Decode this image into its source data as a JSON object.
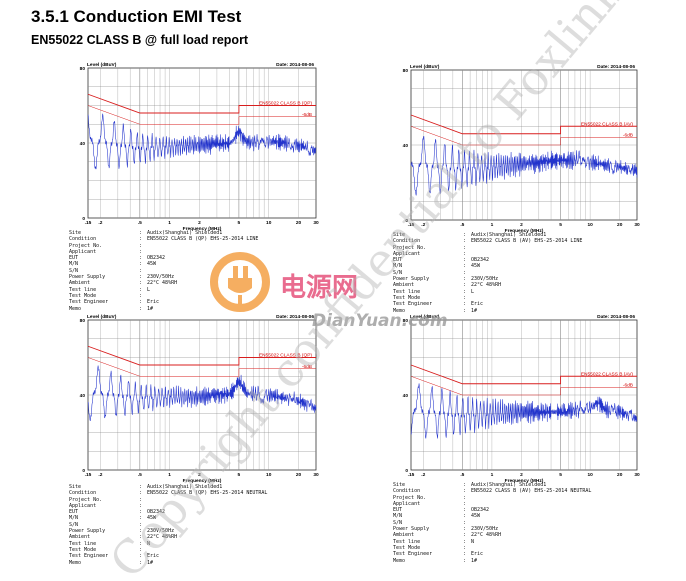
{
  "heading": "3.5.1 Conduction EMI Test",
  "subheading": "EN55022 CLASS B @ full load report",
  "watermark": {
    "brand_cn": "电源网",
    "brand_en": "DianYuan.com",
    "diagonal_text": "Copyright confidential to Foxlink",
    "colors": {
      "orange": "#f39a3a",
      "pink": "#e23b6a",
      "gray": "#a8a8a8"
    }
  },
  "colors": {
    "trace": "#2233cc",
    "limit": "#d81e1e",
    "grid": "#8a8a8a"
  },
  "chart_data": [
    {
      "type": "line",
      "ylabel": "Level (dBuV)",
      "xlabel": "Frequency (MHz)",
      "date": "Date: 2014-08-06",
      "y_ticks": [
        "80",
        "40",
        "0"
      ],
      "x_ticks": [
        ".15",
        ".2",
        ".5",
        "1",
        "2",
        "5",
        "10",
        "20",
        "30"
      ],
      "ylim": [
        0,
        80
      ],
      "xlim": [
        0.15,
        30
      ],
      "x_scale": "log",
      "limit_label": "EN55022 CLASS B (QP)",
      "margin_label": "-6dB",
      "noise_mean": [
        [
          0.15,
          42
        ],
        [
          0.5,
          37
        ],
        [
          1,
          38
        ],
        [
          2,
          39
        ],
        [
          5,
          40
        ],
        [
          10,
          41
        ],
        [
          20,
          39
        ],
        [
          30,
          36
        ]
      ],
      "noise_amp": [
        [
          0.15,
          16
        ],
        [
          0.3,
          12
        ],
        [
          0.5,
          8
        ],
        [
          1,
          5
        ],
        [
          5,
          4
        ],
        [
          30,
          3
        ]
      ],
      "peak_f": 5.0,
      "peak_v": 46,
      "info": [
        [
          "Site",
          "Audix(Shanghai) Shielded1"
        ],
        [
          "Condition",
          "EN55022 CLASS B (QP) EHS-25-2014 LINE"
        ],
        [
          "Project No.",
          ""
        ],
        [
          "Applicant",
          ""
        ],
        [
          "EUT",
          "OB2342"
        ],
        [
          "M/N",
          "45W"
        ],
        [
          "S/N",
          ""
        ],
        [
          "Power Supply",
          "230V/50Hz"
        ],
        [
          "Ambient",
          "22°C 48%RH"
        ],
        [
          "Test line",
          "L"
        ],
        [
          "Test Mode",
          ""
        ],
        [
          "Test Engineer",
          "Eric"
        ],
        [
          "Memo",
          "1#"
        ]
      ]
    },
    {
      "type": "line",
      "ylabel": "Level (dBuV)",
      "xlabel": "Frequency (MHz)",
      "date": "Date: 2014-08-06",
      "y_ticks": [
        "80",
        "40",
        "0"
      ],
      "x_ticks": [
        ".15",
        ".2",
        ".5",
        "1",
        "2",
        "5",
        "10",
        "20",
        "30"
      ],
      "ylim": [
        0,
        80
      ],
      "xlim": [
        0.15,
        30
      ],
      "x_scale": "log",
      "limit_label": "EN55022 CLASS B (AV)",
      "margin_label": "-6dB",
      "noise_mean": [
        [
          0.15,
          30
        ],
        [
          0.5,
          27
        ],
        [
          1,
          28
        ],
        [
          2,
          30
        ],
        [
          5,
          32
        ],
        [
          10,
          31
        ],
        [
          20,
          28
        ],
        [
          30,
          26
        ]
      ],
      "noise_amp": [
        [
          0.15,
          16
        ],
        [
          0.3,
          14
        ],
        [
          0.5,
          10
        ],
        [
          1,
          7
        ],
        [
          5,
          4
        ],
        [
          30,
          3
        ]
      ],
      "peak_f": 8.0,
      "peak_v": 33,
      "info": [
        [
          "Site",
          "Audix(Shanghai) Shielded1"
        ],
        [
          "Condition",
          "EN55022 CLASS B (AV) EHS-25-2014 LINE"
        ],
        [
          "Project No.",
          ""
        ],
        [
          "Applicant",
          ""
        ],
        [
          "EUT",
          "OB2342"
        ],
        [
          "M/N",
          "45W"
        ],
        [
          "S/N",
          ""
        ],
        [
          "Power Supply",
          "230V/50Hz"
        ],
        [
          "Ambient",
          "22°C 48%RH"
        ],
        [
          "Test line",
          "L"
        ],
        [
          "Test Mode",
          ""
        ],
        [
          "Test Engineer",
          "Eric"
        ],
        [
          "Memo",
          "1#"
        ]
      ]
    },
    {
      "type": "line",
      "ylabel": "Level (dBuV)",
      "xlabel": "Frequency (MHz)",
      "date": "Date: 2014-08-06",
      "y_ticks": [
        "80",
        "40",
        "0"
      ],
      "x_ticks": [
        ".15",
        ".2",
        ".5",
        "1",
        "2",
        "5",
        "10",
        "20",
        "30"
      ],
      "ylim": [
        0,
        80
      ],
      "xlim": [
        0.15,
        30
      ],
      "x_scale": "log",
      "limit_label": "EN55022 CLASS B (QP)",
      "margin_label": "-6dB",
      "noise_mean": [
        [
          0.15,
          42
        ],
        [
          0.5,
          38
        ],
        [
          1,
          39
        ],
        [
          2,
          39
        ],
        [
          5,
          41
        ],
        [
          10,
          40
        ],
        [
          20,
          37
        ],
        [
          30,
          33
        ]
      ],
      "noise_amp": [
        [
          0.15,
          15
        ],
        [
          0.3,
          11
        ],
        [
          0.5,
          7
        ],
        [
          1,
          5
        ],
        [
          5,
          4
        ],
        [
          30,
          3
        ]
      ],
      "peak_f": 5.0,
      "peak_v": 47,
      "info": [
        [
          "Site",
          "Audix(Shanghai) Shielded1"
        ],
        [
          "Condition",
          "EN55022 CLASS B (QP) EHS-25-2014 NEUTRAL"
        ],
        [
          "Project No.",
          ""
        ],
        [
          "Applicant",
          ""
        ],
        [
          "EUT",
          "OB2342"
        ],
        [
          "M/N",
          "45W"
        ],
        [
          "S/N",
          ""
        ],
        [
          "Power Supply",
          "230V/50Hz"
        ],
        [
          "Ambient",
          "22°C 48%RH"
        ],
        [
          "Test line",
          "N"
        ],
        [
          "Test Mode",
          ""
        ],
        [
          "Test Engineer",
          "Eric"
        ],
        [
          "Memo",
          "1#"
        ]
      ]
    },
    {
      "type": "line",
      "ylabel": "Level (dBuV)",
      "xlabel": "Frequency (MHz)",
      "date": "Date: 2014-08-06",
      "y_ticks": [
        "80",
        "40",
        "0"
      ],
      "x_ticks": [
        ".15",
        ".2",
        ".5",
        "1",
        "2",
        "5",
        "10",
        "20",
        "30"
      ],
      "ylim": [
        0,
        80
      ],
      "xlim": [
        0.15,
        30
      ],
      "x_scale": "log",
      "limit_label": "EN55022 CLASS B (AV)",
      "margin_label": "-6dB",
      "noise_mean": [
        [
          0.15,
          32
        ],
        [
          0.5,
          29
        ],
        [
          1,
          30
        ],
        [
          2,
          31
        ],
        [
          5,
          31
        ],
        [
          10,
          33
        ],
        [
          20,
          31
        ],
        [
          30,
          27
        ]
      ],
      "noise_amp": [
        [
          0.15,
          14
        ],
        [
          0.3,
          13
        ],
        [
          0.5,
          10
        ],
        [
          1,
          7
        ],
        [
          5,
          4
        ],
        [
          30,
          3
        ]
      ],
      "peak_f": 12.0,
      "peak_v": 36,
      "info": [
        [
          "Site",
          "Audix(Shanghai) Shielded1"
        ],
        [
          "Condition",
          "EN55022 CLASS B (AV) EHS-25-2014 NEUTRAL"
        ],
        [
          "Project No.",
          ""
        ],
        [
          "Applicant",
          ""
        ],
        [
          "EUT",
          "OB2342"
        ],
        [
          "M/N",
          "45W"
        ],
        [
          "S/N",
          ""
        ],
        [
          "Power Supply",
          "230V/50Hz"
        ],
        [
          "Ambient",
          "22°C 48%RH"
        ],
        [
          "Test line",
          "N"
        ],
        [
          "Test Mode",
          ""
        ],
        [
          "Test Engineer",
          "Eric"
        ],
        [
          "Memo",
          "1#"
        ]
      ]
    }
  ]
}
